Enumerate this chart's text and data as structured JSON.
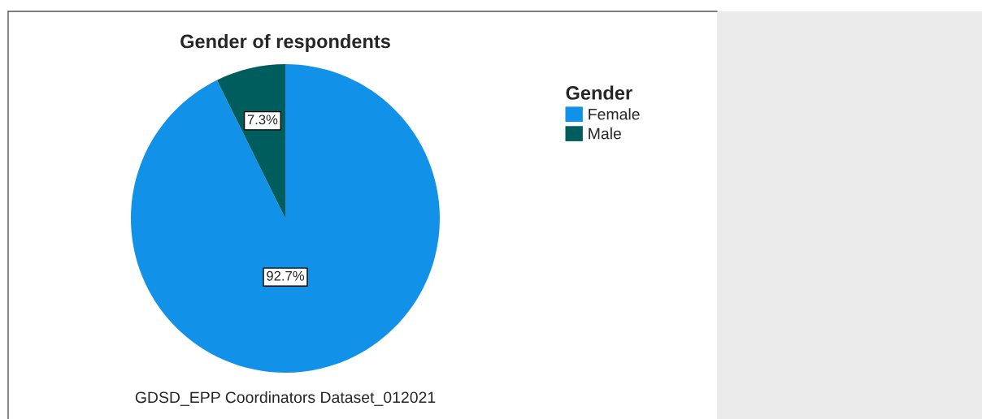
{
  "chart_data": {
    "type": "pie",
    "title": "Gender of respondents",
    "categories": [
      "Female",
      "Male"
    ],
    "values": [
      92.7,
      7.3
    ],
    "colors": [
      "#1192e8",
      "#005d5d"
    ],
    "value_labels": [
      "92.7%",
      "7.3%"
    ],
    "legend_title": "Gender",
    "legend": "right",
    "annotations": [
      "GDSD_EPP Coordinators Dataset_012021"
    ]
  }
}
